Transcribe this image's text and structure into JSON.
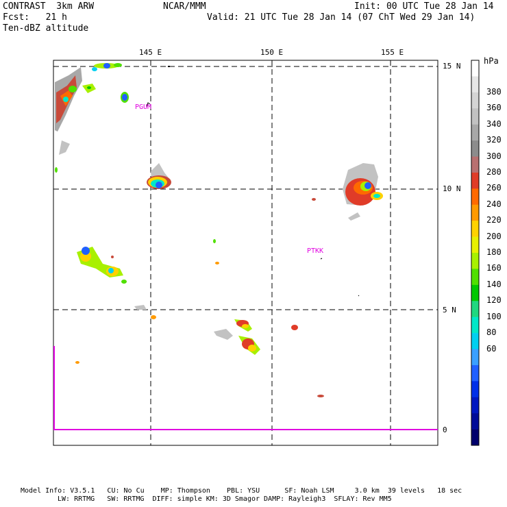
{
  "header": {
    "model": "CONTRAST  3km ARW",
    "org": "NCAR/MMM",
    "init": "Init: 00 UTC Tue 28 Jan 14",
    "fcst": "Fcst:   21 h",
    "valid": "Valid: 21 UTC Tue 28 Jan 14 (07 ChT Wed 29 Jan 14)",
    "field": "Ten-dBZ altitude"
  },
  "map": {
    "lon_labels": [
      "145 E",
      "150 E",
      "155 E"
    ],
    "lat_labels": [
      "15 N",
      "10 N",
      "5 N",
      "0"
    ],
    "stations": [
      "PGUM",
      "PTKK"
    ]
  },
  "colorbar": {
    "unit": "hPa",
    "labels": [
      "380",
      "360",
      "340",
      "320",
      "300",
      "280",
      "260",
      "240",
      "220",
      "200",
      "180",
      "160",
      "140",
      "120",
      "100",
      "80",
      "60"
    ],
    "colors": [
      "#ffffff",
      "#e6e6e6",
      "#d4d4d4",
      "#c2c2c2",
      "#a8a8a8",
      "#8c8c8c",
      "#b87070",
      "#e03c28",
      "#ff6a00",
      "#ff9a00",
      "#ffd200",
      "#e8f000",
      "#a8f000",
      "#50e000",
      "#00c800",
      "#20d880",
      "#00e8c8",
      "#00d0f0",
      "#3aa0ff",
      "#2060ff",
      "#0030e8",
      "#0018c0",
      "#000c98",
      "#00006c"
    ]
  },
  "footer": {
    "line1": "Model Info: V3.5.1   CU: No Cu    MP: Thompson    PBL: YSU      SF: Noah LSM     3.0 km  39 levels   18 sec",
    "line2": "LW: RRTMG   SW: RRTMG  DIFF: simple KM: 3D Smagor DAMP: Rayleigh3  SFLAY: Rev MM5"
  }
}
